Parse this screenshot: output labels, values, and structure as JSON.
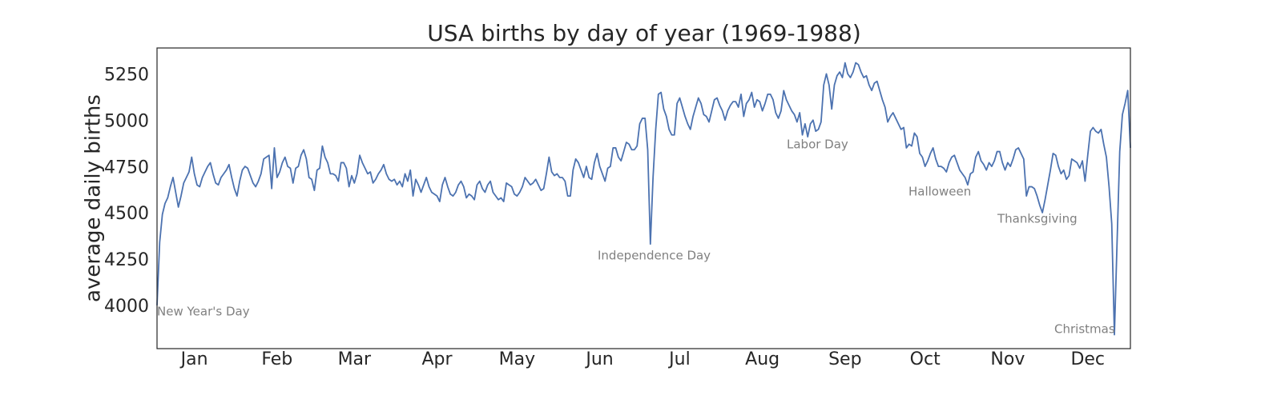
{
  "chart_data": {
    "type": "line",
    "title": "USA births by day of year (1969-1988)",
    "ylabel": "average daily births",
    "x": [
      1,
      2,
      3,
      4,
      5,
      6,
      7,
      8,
      9,
      10,
      11,
      12,
      13,
      14,
      15,
      16,
      17,
      18,
      19,
      20,
      21,
      22,
      23,
      24,
      25,
      26,
      27,
      28,
      29,
      30,
      31,
      32,
      33,
      34,
      35,
      36,
      37,
      38,
      39,
      40,
      41,
      42,
      43,
      44,
      45,
      46,
      47,
      48,
      49,
      50,
      51,
      52,
      53,
      54,
      55,
      56,
      57,
      58,
      59,
      60,
      61,
      62,
      63,
      64,
      65,
      66,
      67,
      68,
      69,
      70,
      71,
      72,
      73,
      74,
      75,
      76,
      77,
      78,
      79,
      80,
      81,
      82,
      83,
      84,
      85,
      86,
      87,
      88,
      89,
      90,
      91,
      92,
      93,
      94,
      95,
      96,
      97,
      98,
      99,
      100,
      101,
      102,
      103,
      104,
      105,
      106,
      107,
      108,
      109,
      110,
      111,
      112,
      113,
      114,
      115,
      116,
      117,
      118,
      119,
      120,
      121,
      122,
      123,
      124,
      125,
      126,
      127,
      128,
      129,
      130,
      131,
      132,
      133,
      134,
      135,
      136,
      137,
      138,
      139,
      140,
      141,
      142,
      143,
      144,
      145,
      146,
      147,
      148,
      149,
      150,
      151,
      152,
      153,
      154,
      155,
      156,
      157,
      158,
      159,
      160,
      161,
      162,
      163,
      164,
      165,
      166,
      167,
      168,
      169,
      170,
      171,
      172,
      173,
      174,
      175,
      176,
      177,
      178,
      179,
      180,
      181,
      182,
      183,
      184,
      185,
      186,
      187,
      188,
      189,
      190,
      191,
      192,
      193,
      194,
      195,
      196,
      197,
      198,
      199,
      200,
      201,
      202,
      203,
      204,
      205,
      206,
      207,
      208,
      209,
      210,
      211,
      212,
      213,
      214,
      215,
      216,
      217,
      218,
      219,
      220,
      221,
      222,
      223,
      224,
      225,
      226,
      227,
      228,
      229,
      230,
      231,
      232,
      233,
      234,
      235,
      236,
      237,
      238,
      239,
      240,
      241,
      242,
      243,
      244,
      245,
      246,
      247,
      248,
      249,
      250,
      251,
      252,
      253,
      254,
      255,
      256,
      257,
      258,
      259,
      260,
      261,
      262,
      263,
      264,
      265,
      266,
      267,
      268,
      269,
      270,
      271,
      272,
      273,
      274,
      275,
      276,
      277,
      278,
      279,
      280,
      281,
      282,
      283,
      284,
      285,
      286,
      287,
      288,
      289,
      290,
      291,
      292,
      293,
      294,
      295,
      296,
      297,
      298,
      299,
      300,
      301,
      302,
      303,
      304,
      305,
      306,
      307,
      308,
      309,
      310,
      311,
      312,
      313,
      314,
      315,
      316,
      317,
      318,
      319,
      320,
      321,
      322,
      323,
      324,
      325,
      326,
      327,
      328,
      329,
      330,
      331,
      332,
      333,
      334,
      335,
      336,
      337,
      338,
      339,
      340,
      341,
      342,
      343,
      344,
      345,
      346,
      347,
      348,
      349,
      350,
      351,
      352,
      353,
      354,
      355,
      356,
      357,
      358,
      359,
      360,
      361,
      362,
      363,
      364,
      365,
      366
    ],
    "series": [
      {
        "color": "#4c72b0",
        "values": [
          4009,
          4350,
          4500,
          4560,
          4590,
          4650,
          4700,
          4620,
          4540,
          4600,
          4670,
          4700,
          4730,
          4810,
          4720,
          4660,
          4650,
          4700,
          4730,
          4760,
          4780,
          4720,
          4670,
          4660,
          4700,
          4720,
          4740,
          4770,
          4700,
          4640,
          4600,
          4680,
          4740,
          4760,
          4750,
          4710,
          4670,
          4650,
          4680,
          4720,
          4800,
          4810,
          4820,
          4640,
          4860,
          4700,
          4730,
          4780,
          4810,
          4760,
          4750,
          4670,
          4750,
          4760,
          4820,
          4850,
          4800,
          4700,
          4690,
          4630,
          4740,
          4750,
          4870,
          4810,
          4780,
          4720,
          4720,
          4710,
          4680,
          4780,
          4780,
          4750,
          4650,
          4710,
          4670,
          4720,
          4820,
          4780,
          4750,
          4720,
          4730,
          4670,
          4690,
          4720,
          4740,
          4770,
          4720,
          4690,
          4680,
          4690,
          4660,
          4680,
          4650,
          4720,
          4680,
          4740,
          4600,
          4690,
          4660,
          4620,
          4660,
          4700,
          4650,
          4620,
          4610,
          4600,
          4570,
          4660,
          4700,
          4650,
          4610,
          4600,
          4620,
          4660,
          4680,
          4650,
          4590,
          4610,
          4600,
          4580,
          4660,
          4680,
          4640,
          4620,
          4660,
          4680,
          4620,
          4600,
          4580,
          4590,
          4570,
          4670,
          4660,
          4650,
          4610,
          4600,
          4620,
          4650,
          4700,
          4680,
          4660,
          4670,
          4690,
          4660,
          4630,
          4640,
          4720,
          4810,
          4730,
          4710,
          4720,
          4700,
          4700,
          4680,
          4600,
          4600,
          4740,
          4800,
          4780,
          4740,
          4700,
          4760,
          4700,
          4690,
          4780,
          4830,
          4760,
          4720,
          4680,
          4750,
          4760,
          4860,
          4860,
          4810,
          4790,
          4840,
          4890,
          4880,
          4850,
          4850,
          4870,
          4990,
          5020,
          5020,
          4850,
          4340,
          4700,
          4960,
          5150,
          5160,
          5070,
          5030,
          4960,
          4930,
          4930,
          5100,
          5130,
          5080,
          5030,
          4990,
          4960,
          5030,
          5080,
          5130,
          5100,
          5040,
          5030,
          5000,
          5060,
          5120,
          5130,
          5090,
          5060,
          5010,
          5060,
          5090,
          5110,
          5110,
          5080,
          5150,
          5030,
          5100,
          5120,
          5160,
          5080,
          5120,
          5110,
          5060,
          5100,
          5150,
          5150,
          5120,
          5050,
          5020,
          5060,
          5170,
          5120,
          5090,
          5060,
          5040,
          5000,
          5050,
          4930,
          4990,
          4920,
          4990,
          5010,
          4950,
          4960,
          5000,
          5200,
          5260,
          5200,
          5070,
          5200,
          5250,
          5270,
          5240,
          5320,
          5260,
          5240,
          5270,
          5320,
          5310,
          5270,
          5240,
          5250,
          5200,
          5170,
          5210,
          5220,
          5170,
          5120,
          5080,
          5000,
          5030,
          5050,
          5020,
          4990,
          4960,
          4970,
          4860,
          4880,
          4870,
          4940,
          4920,
          4830,
          4810,
          4760,
          4790,
          4830,
          4860,
          4800,
          4760,
          4760,
          4750,
          4730,
          4780,
          4810,
          4820,
          4780,
          4740,
          4720,
          4700,
          4660,
          4720,
          4730,
          4810,
          4840,
          4790,
          4770,
          4740,
          4780,
          4760,
          4790,
          4840,
          4840,
          4780,
          4740,
          4780,
          4760,
          4800,
          4850,
          4860,
          4830,
          4800,
          4600,
          4650,
          4650,
          4640,
          4600,
          4550,
          4510,
          4580,
          4660,
          4740,
          4830,
          4820,
          4760,
          4720,
          4740,
          4690,
          4710,
          4800,
          4790,
          4780,
          4750,
          4790,
          4680,
          4820,
          4950,
          4970,
          4950,
          4940,
          4960,
          4880,
          4810,
          4650,
          4450,
          3850,
          4350,
          4840,
          5040,
          5100,
          5170,
          4860
        ]
      }
    ],
    "xlim": [
      1,
      366
    ],
    "xticks": [
      {
        "value": 15,
        "label": "Jan"
      },
      {
        "value": 46,
        "label": "Feb"
      },
      {
        "value": 75,
        "label": "Mar"
      },
      {
        "value": 106,
        "label": "Apr"
      },
      {
        "value": 136,
        "label": "May"
      },
      {
        "value": 167,
        "label": "Jun"
      },
      {
        "value": 197,
        "label": "Jul"
      },
      {
        "value": 228,
        "label": "Aug"
      },
      {
        "value": 259,
        "label": "Sep"
      },
      {
        "value": 289,
        "label": "Oct"
      },
      {
        "value": 320,
        "label": "Nov"
      },
      {
        "value": 350,
        "label": "Dec"
      }
    ],
    "ylim": [
      3775,
      5400
    ],
    "yticks": [
      4000,
      4250,
      4500,
      4750,
      5000,
      5250
    ],
    "grid": false,
    "annotations": [
      "New Year's Day",
      "Independence Day",
      "Labor Day",
      "Halloween",
      "Thanksgiving",
      "Christmas"
    ]
  }
}
